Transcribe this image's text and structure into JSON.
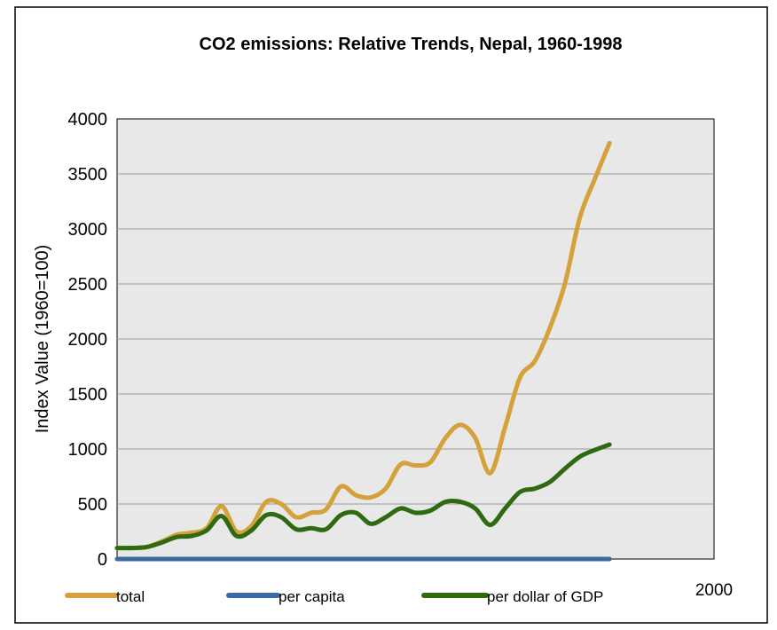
{
  "chart_data": {
    "type": "line",
    "title": "CO2 emissions: Relative Trends, Nepal, 1960-1998",
    "ylabel": "Index Value (1960=100)",
    "xlabel": "",
    "ylim": [
      0,
      4000
    ],
    "yticks": [
      "0",
      "500",
      "1000",
      "1500",
      "2000",
      "2500",
      "3000",
      "3500",
      "4000"
    ],
    "xlim": [
      1960,
      2000
    ],
    "xtick_label": "2000",
    "grid": "horizontal",
    "legend_position": "bottom",
    "x": [
      1960,
      1961,
      1962,
      1963,
      1964,
      1965,
      1966,
      1967,
      1968,
      1969,
      1970,
      1971,
      1972,
      1973,
      1974,
      1975,
      1976,
      1977,
      1978,
      1979,
      1980,
      1981,
      1982,
      1983,
      1984,
      1985,
      1986,
      1987,
      1988,
      1989,
      1990,
      1991,
      1992,
      1993,
      1994,
      1995,
      1996,
      1997,
      1998
    ],
    "series": [
      {
        "name": "total",
        "color": "#d4a13a",
        "values": [
          100,
          100,
          110,
          160,
          220,
          240,
          280,
          480,
          250,
          300,
          520,
          500,
          380,
          420,
          450,
          660,
          580,
          560,
          640,
          860,
          850,
          880,
          1100,
          1220,
          1100,
          780,
          1200,
          1650,
          1800,
          2100,
          2500,
          3100,
          3450,
          3780,
          null,
          null,
          null,
          null,
          null
        ]
      },
      {
        "name": "per capita",
        "color": "#3a6aa0",
        "values": [
          0,
          0,
          0,
          0,
          0,
          0,
          0,
          0,
          0,
          0,
          0,
          0,
          0,
          0,
          0,
          0,
          0,
          0,
          0,
          0,
          0,
          0,
          0,
          0,
          0,
          0,
          0,
          0,
          0,
          0,
          0,
          0,
          0,
          0,
          null,
          null,
          null,
          null,
          null
        ]
      },
      {
        "name": "per dollar of GDP",
        "color": "#2f6a10",
        "values": [
          100,
          100,
          110,
          150,
          200,
          210,
          260,
          390,
          210,
          260,
          400,
          380,
          270,
          280,
          270,
          400,
          420,
          320,
          380,
          460,
          420,
          440,
          520,
          520,
          460,
          310,
          460,
          610,
          640,
          700,
          820,
          930,
          990,
          1040,
          null,
          null,
          null,
          null,
          null
        ]
      }
    ]
  }
}
